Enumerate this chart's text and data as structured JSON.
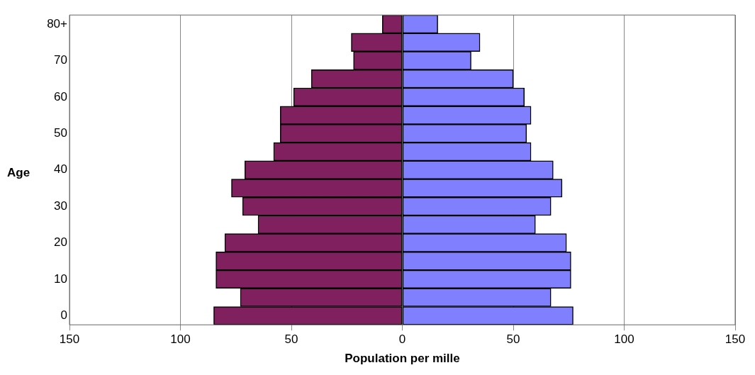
{
  "chart_data": {
    "type": "bar",
    "orientation": "horizontal",
    "stacked": true,
    "xlabel": "Population per mille",
    "ylabel": "Age",
    "categories": [
      "80+",
      null,
      "70",
      null,
      "60",
      null,
      "50",
      null,
      "40",
      null,
      "30",
      null,
      "20",
      null,
      "10",
      null,
      "0"
    ],
    "series": [
      {
        "color": "#80205f",
        "values": [
          -9,
          -23,
          -22,
          -41,
          -49,
          -55,
          -55,
          -58,
          -71,
          -77,
          -72,
          -65,
          -80,
          -84,
          -84,
          -73,
          -85
        ]
      },
      {
        "color": "#8080ff",
        "values": [
          16,
          35,
          31,
          50,
          55,
          58,
          56,
          58,
          68,
          72,
          67,
          60,
          74,
          76,
          76,
          67,
          77
        ]
      }
    ],
    "xlim": [
      -150,
      150
    ],
    "xticks": [
      {
        "value": -150,
        "label": "150"
      },
      {
        "value": -100,
        "label": "100"
      },
      {
        "value": -50,
        "label": "50"
      },
      0,
      50,
      100,
      150
    ],
    "grid": "x",
    "legend": false
  }
}
